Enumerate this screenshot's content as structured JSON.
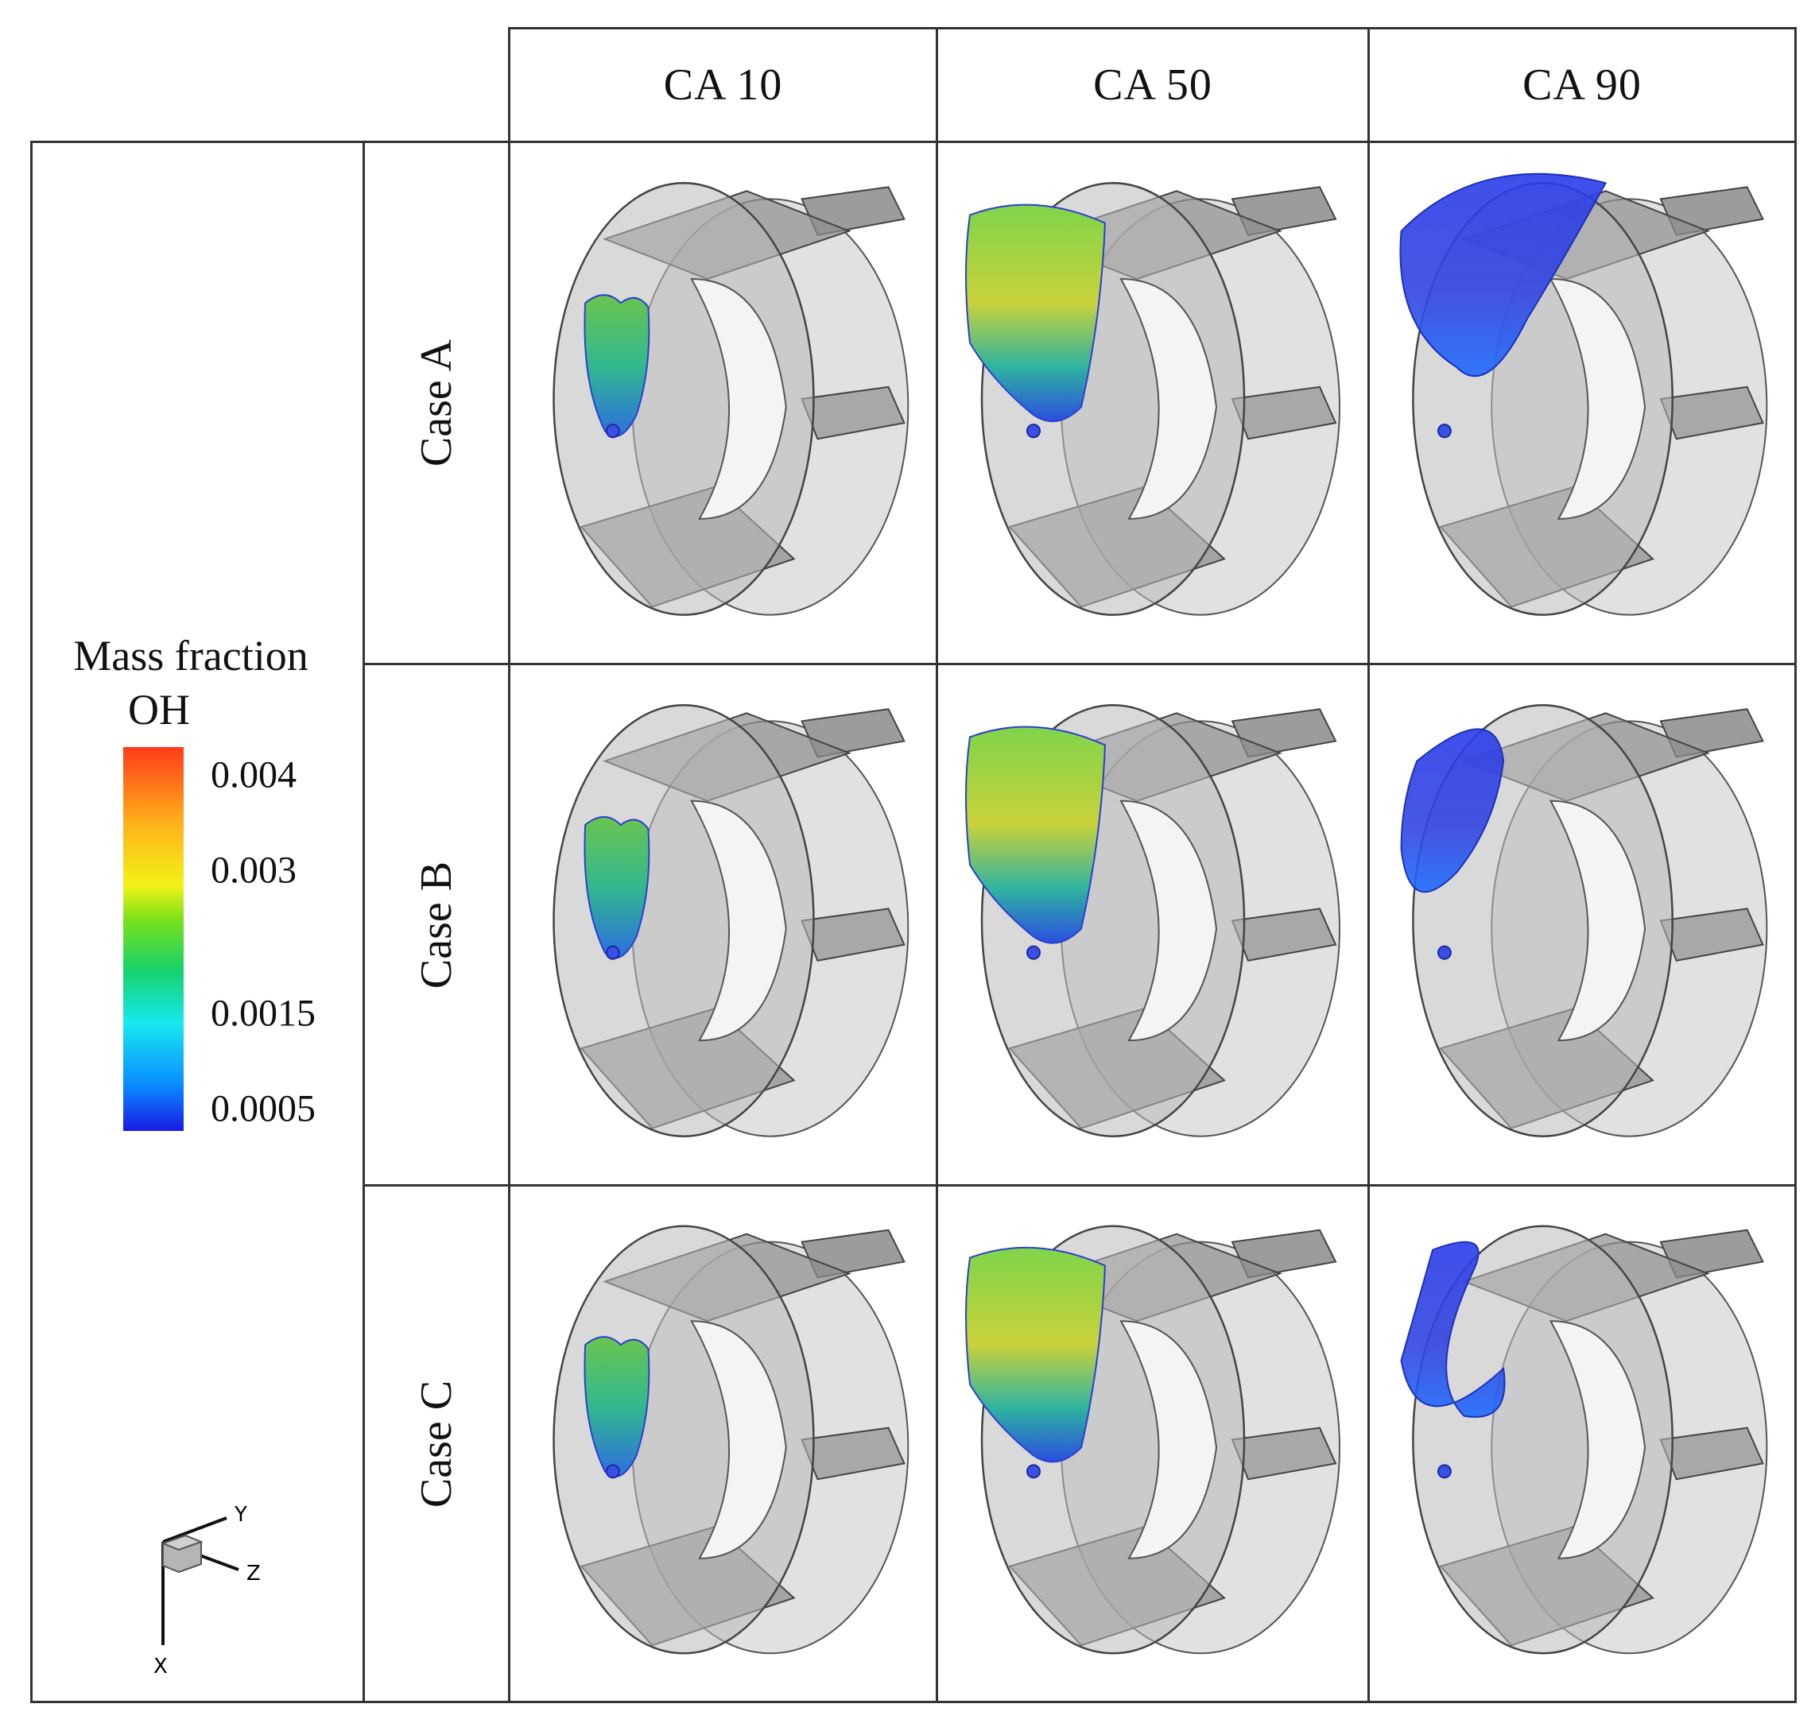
{
  "columns": [
    "CA 10",
    "CA 50",
    "CA 90"
  ],
  "rows": [
    "Case A",
    "Case B",
    "Case C"
  ],
  "legend": {
    "title_line1": "Mass fraction",
    "title_line2": "OH",
    "ticks": [
      "0.004",
      "0.003",
      "0.0015",
      "0.0005"
    ],
    "colormap": [
      "#1a1ae6",
      "#0a8cff",
      "#17e8f0",
      "#16d36a",
      "#7be11a",
      "#f2f218",
      "#ffb21a",
      "#ff3b1a"
    ]
  },
  "axes_triad": {
    "x_label": "X",
    "y_label": "Y",
    "z_label": "Z"
  },
  "colors": {
    "chamber": "#9a9a9a",
    "frame": "#333333"
  }
}
